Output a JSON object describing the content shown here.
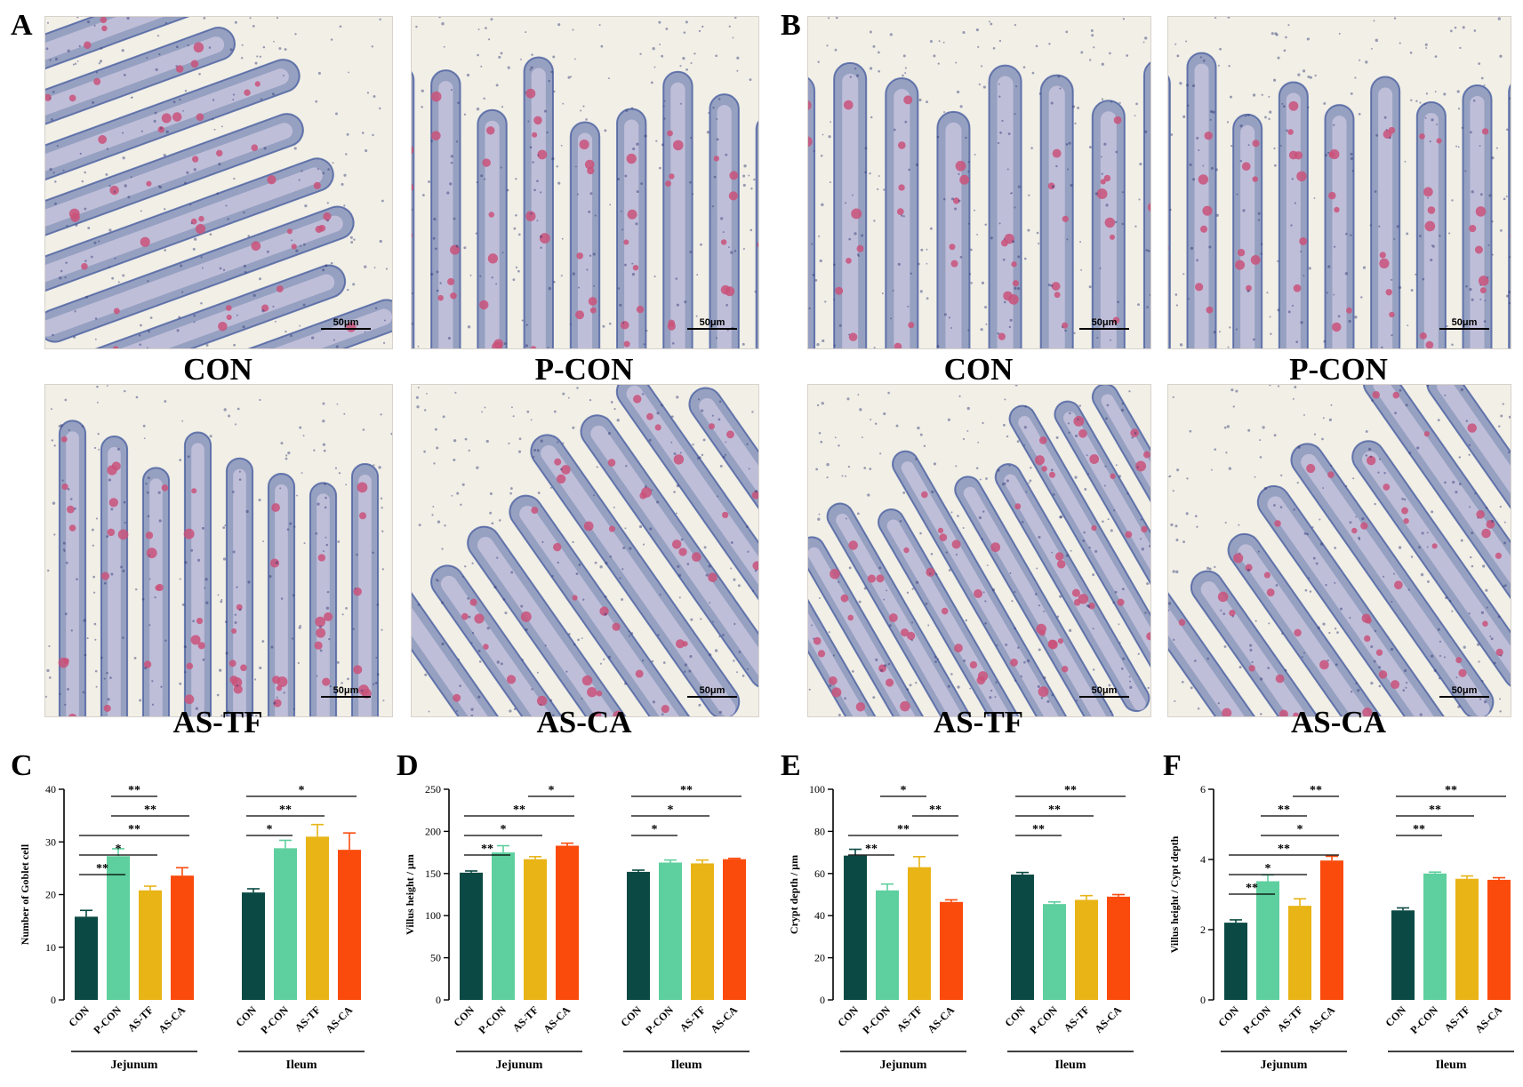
{
  "panels": {
    "A": "A",
    "B": "B",
    "C": "C",
    "D": "D",
    "E": "E",
    "F": "F"
  },
  "colors": {
    "CON": "#0b4a44",
    "P-CON": "#5ecf9e",
    "AS-TF": "#e8b416",
    "AS-CA": "#fa4b0c",
    "tissue_pink": "#c9527a",
    "tissue_blue": "#4a5fa0",
    "tissue_bg": "#f1efe6"
  },
  "micrographs": {
    "scale_label": "50μm",
    "A": [
      {
        "label": "CON"
      },
      {
        "label": "P-CON"
      },
      {
        "label": "AS-TF"
      },
      {
        "label": "AS-CA"
      }
    ],
    "B": [
      {
        "label": "CON"
      },
      {
        "label": "P-CON"
      },
      {
        "label": "AS-TF"
      },
      {
        "label": "AS-CA"
      }
    ]
  },
  "chart_data": [
    {
      "panel": "C",
      "type": "bar",
      "ylabel": "Number of Goblet cell",
      "ylim": [
        0,
        40
      ],
      "yticks": [
        0,
        10,
        20,
        30,
        40
      ],
      "groups": [
        "Jejunum",
        "Ileum"
      ],
      "categories": [
        "CON",
        "P-CON",
        "AS-TF",
        "AS-CA"
      ],
      "series": [
        {
          "group": "Jejunum",
          "values": [
            15.8,
            27.3,
            20.8,
            23.6
          ],
          "errors": [
            1.2,
            1.4,
            0.8,
            1.5
          ]
        },
        {
          "group": "Ileum",
          "values": [
            20.4,
            28.8,
            31.0,
            28.5
          ],
          "errors": [
            0.7,
            1.5,
            2.3,
            3.2
          ]
        }
      ],
      "significance": [
        {
          "group": "Jejunum",
          "from": 1,
          "to": 2,
          "label": "**"
        },
        {
          "group": "Jejunum",
          "from": 1,
          "to": 3,
          "label": "**"
        },
        {
          "group": "Jejunum",
          "from": 0,
          "to": 3,
          "label": "**"
        },
        {
          "group": "Jejunum",
          "from": 0,
          "to": 2,
          "label": "*"
        },
        {
          "group": "Jejunum",
          "from": 0,
          "to": 1,
          "label": "**"
        },
        {
          "group": "Ileum",
          "from": 0,
          "to": 3,
          "label": "*"
        },
        {
          "group": "Ileum",
          "from": 0,
          "to": 2,
          "label": "**"
        },
        {
          "group": "Ileum",
          "from": 0,
          "to": 1,
          "label": "*"
        }
      ]
    },
    {
      "panel": "D",
      "type": "bar",
      "ylabel": "Villus height / μm",
      "ylim": [
        0,
        250
      ],
      "yticks": [
        0,
        50,
        100,
        150,
        200,
        250
      ],
      "groups": [
        "Jejunum",
        "Ileum"
      ],
      "categories": [
        "CON",
        "P-CON",
        "AS-TF",
        "AS-CA"
      ],
      "series": [
        {
          "group": "Jejunum",
          "values": [
            151,
            175,
            167,
            183
          ],
          "errors": [
            2,
            8,
            3,
            3
          ]
        },
        {
          "group": "Ileum",
          "values": [
            152,
            163,
            162,
            167
          ],
          "errors": [
            2,
            3,
            4,
            1
          ]
        }
      ],
      "significance": [
        {
          "group": "Jejunum",
          "from": 2,
          "to": 3,
          "label": "*"
        },
        {
          "group": "Jejunum",
          "from": 0,
          "to": 3,
          "label": "**"
        },
        {
          "group": "Jejunum",
          "from": 0,
          "to": 2,
          "label": "*"
        },
        {
          "group": "Jejunum",
          "from": 0,
          "to": 1,
          "label": "**"
        },
        {
          "group": "Ileum",
          "from": 0,
          "to": 3,
          "label": "**"
        },
        {
          "group": "Ileum",
          "from": 0,
          "to": 2,
          "label": "*"
        },
        {
          "group": "Ileum",
          "from": 0,
          "to": 1,
          "label": "*"
        }
      ]
    },
    {
      "panel": "E",
      "type": "bar",
      "ylabel": "Crypt depth / μm",
      "ylim": [
        0,
        100
      ],
      "yticks": [
        0,
        20,
        40,
        60,
        80,
        100
      ],
      "groups": [
        "Jejunum",
        "Ileum"
      ],
      "categories": [
        "CON",
        "P-CON",
        "AS-TF",
        "AS-CA"
      ],
      "series": [
        {
          "group": "Jejunum",
          "values": [
            68.5,
            52,
            63,
            46.5
          ],
          "errors": [
            3,
            3,
            5,
            1
          ]
        },
        {
          "group": "Ileum",
          "values": [
            59.5,
            45.5,
            47.5,
            49
          ],
          "errors": [
            1,
            1,
            2,
            1
          ]
        }
      ],
      "significance": [
        {
          "group": "Jejunum",
          "from": 1,
          "to": 2,
          "label": "*"
        },
        {
          "group": "Jejunum",
          "from": 2,
          "to": 3,
          "label": "**"
        },
        {
          "group": "Jejunum",
          "from": 0,
          "to": 3,
          "label": "**"
        },
        {
          "group": "Jejunum",
          "from": 0,
          "to": 1,
          "label": "**"
        },
        {
          "group": "Ileum",
          "from": 0,
          "to": 3,
          "label": "**"
        },
        {
          "group": "Ileum",
          "from": 0,
          "to": 2,
          "label": "**"
        },
        {
          "group": "Ileum",
          "from": 0,
          "to": 1,
          "label": "**"
        }
      ]
    },
    {
      "panel": "F",
      "type": "bar",
      "ylabel": "Villus height / Cypt depth",
      "ylim": [
        0,
        6
      ],
      "yticks": [
        0,
        2,
        4,
        6
      ],
      "groups": [
        "Jejunum",
        "Ileum"
      ],
      "categories": [
        "CON",
        "P-CON",
        "AS-TF",
        "AS-CA"
      ],
      "series": [
        {
          "group": "Jejunum",
          "values": [
            2.2,
            3.38,
            2.68,
            3.97
          ],
          "errors": [
            0.08,
            0.18,
            0.2,
            0.12
          ]
        },
        {
          "group": "Ileum",
          "values": [
            2.55,
            3.6,
            3.45,
            3.42
          ],
          "errors": [
            0.07,
            0.04,
            0.08,
            0.06
          ]
        }
      ],
      "significance": [
        {
          "group": "Jejunum",
          "from": 2,
          "to": 3,
          "label": "**"
        },
        {
          "group": "Jejunum",
          "from": 1,
          "to": 2,
          "label": "**"
        },
        {
          "group": "Jejunum",
          "from": 1,
          "to": 3,
          "label": "*"
        },
        {
          "group": "Jejunum",
          "from": 0,
          "to": 3,
          "label": "**"
        },
        {
          "group": "Jejunum",
          "from": 0,
          "to": 2,
          "label": "*"
        },
        {
          "group": "Jejunum",
          "from": 0,
          "to": 1,
          "label": "**"
        },
        {
          "group": "Ileum",
          "from": 0,
          "to": 3,
          "label": "**"
        },
        {
          "group": "Ileum",
          "from": 0,
          "to": 2,
          "label": "**"
        },
        {
          "group": "Ileum",
          "from": 0,
          "to": 1,
          "label": "**"
        }
      ]
    }
  ]
}
